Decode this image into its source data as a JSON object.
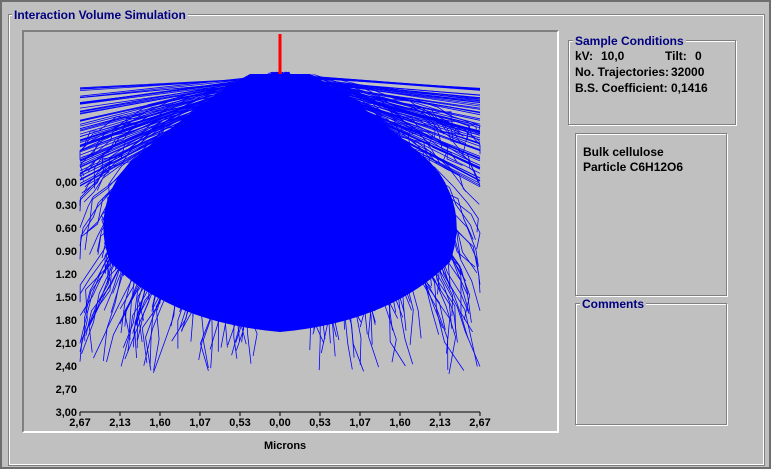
{
  "window": {
    "title": "Interaction Volume Simulation"
  },
  "sample": {
    "title": "Sample Conditions",
    "kv_label": "kV:",
    "kv_value": "10,0",
    "tilt_label": "Tilt:",
    "tilt_value": "0",
    "traj_label": "No. Trajectories:",
    "traj_value": "32000",
    "bs_label": "B.S. Coefficient:",
    "bs_value": "0,1416"
  },
  "description": {
    "line1": "Bulk cellulose",
    "line2": "Particle C6H12O6"
  },
  "comments": {
    "title": "Comments"
  },
  "chart_data": {
    "type": "scatter",
    "xlabel": "Microns",
    "ylabel": "",
    "x_ticks": [
      "2,67",
      "2,13",
      "1,60",
      "1,07",
      "0,53",
      "0,00",
      "0,53",
      "1,07",
      "1,60",
      "2,13",
      "2,67"
    ],
    "y_ticks": [
      "0,00",
      "0.30",
      "0.60",
      "0.90",
      "1.20",
      "1.50",
      "1.80",
      "2,10",
      "2,40",
      "2,70",
      "3,00"
    ],
    "xlim": [
      -2.67,
      2.67
    ],
    "ylim": [
      0,
      3.0
    ],
    "trajectory_color": "#0000ff",
    "beam_color": "#ff0000"
  }
}
